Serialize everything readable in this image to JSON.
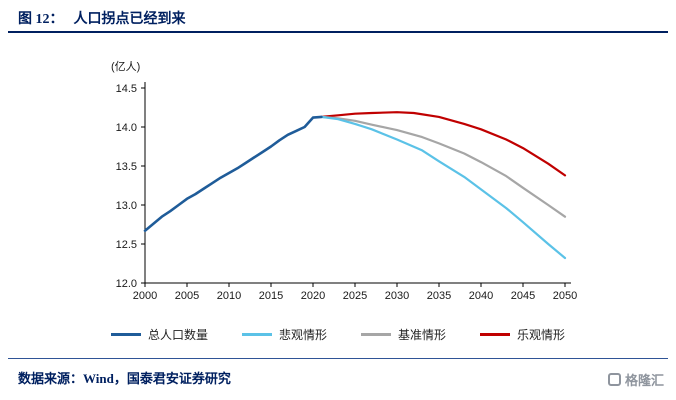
{
  "header": {
    "figure_label": "图 12：",
    "title": "人口拐点已经到来"
  },
  "footer": {
    "source": "数据来源：Wind，国泰君安证券研究",
    "logo_text": "格隆汇"
  },
  "colors": {
    "accent_navy": "#002060",
    "rule_blue": "#2F5496",
    "axis": "#000000"
  },
  "chart_data": {
    "type": "line",
    "title": "人口拐点已经到来",
    "xlabel": "",
    "ylabel": "(亿人)",
    "xlim": [
      2000,
      2050
    ],
    "ylim": [
      12.0,
      14.5
    ],
    "xticks": [
      2000,
      2005,
      2010,
      2015,
      2020,
      2025,
      2030,
      2035,
      2040,
      2045,
      2050
    ],
    "yticks": [
      12.0,
      12.5,
      13.0,
      13.5,
      14.0,
      14.5
    ],
    "grid": false,
    "legend_position": "bottom",
    "series": [
      {
        "name": "总人口数量",
        "color": "#1F5C99",
        "width": 2.6,
        "x": [
          2000,
          2001,
          2002,
          2003,
          2004,
          2005,
          2006,
          2007,
          2008,
          2009,
          2010,
          2011,
          2012,
          2013,
          2014,
          2015,
          2016,
          2017,
          2018,
          2019,
          2020,
          2021
        ],
        "values": [
          12.67,
          12.76,
          12.85,
          12.92,
          13.0,
          13.08,
          13.14,
          13.21,
          13.28,
          13.35,
          13.41,
          13.47,
          13.54,
          13.61,
          13.68,
          13.75,
          13.83,
          13.9,
          13.95,
          14.0,
          14.12,
          14.13
        ]
      },
      {
        "name": "悲观情形",
        "color": "#5BC2E7",
        "width": 2.2,
        "x": [
          2021,
          2023,
          2025,
          2027,
          2030,
          2033,
          2035,
          2038,
          2040,
          2043,
          2045,
          2048,
          2050
        ],
        "values": [
          14.13,
          14.1,
          14.04,
          13.97,
          13.84,
          13.7,
          13.56,
          13.36,
          13.2,
          12.96,
          12.78,
          12.5,
          12.32
        ]
      },
      {
        "name": "基准情形",
        "color": "#A6A6A6",
        "width": 2.2,
        "x": [
          2021,
          2023,
          2025,
          2027,
          2030,
          2033,
          2035,
          2038,
          2040,
          2043,
          2045,
          2048,
          2050
        ],
        "values": [
          14.13,
          14.11,
          14.08,
          14.03,
          13.96,
          13.87,
          13.79,
          13.66,
          13.55,
          13.37,
          13.22,
          13.0,
          12.85
        ]
      },
      {
        "name": "乐观情形",
        "color": "#C00000",
        "width": 2.2,
        "x": [
          2021,
          2023,
          2025,
          2027,
          2030,
          2032,
          2035,
          2038,
          2040,
          2043,
          2045,
          2048,
          2050
        ],
        "values": [
          14.13,
          14.15,
          14.17,
          14.18,
          14.19,
          14.18,
          14.13,
          14.04,
          13.97,
          13.84,
          13.73,
          13.53,
          13.38
        ]
      }
    ]
  }
}
